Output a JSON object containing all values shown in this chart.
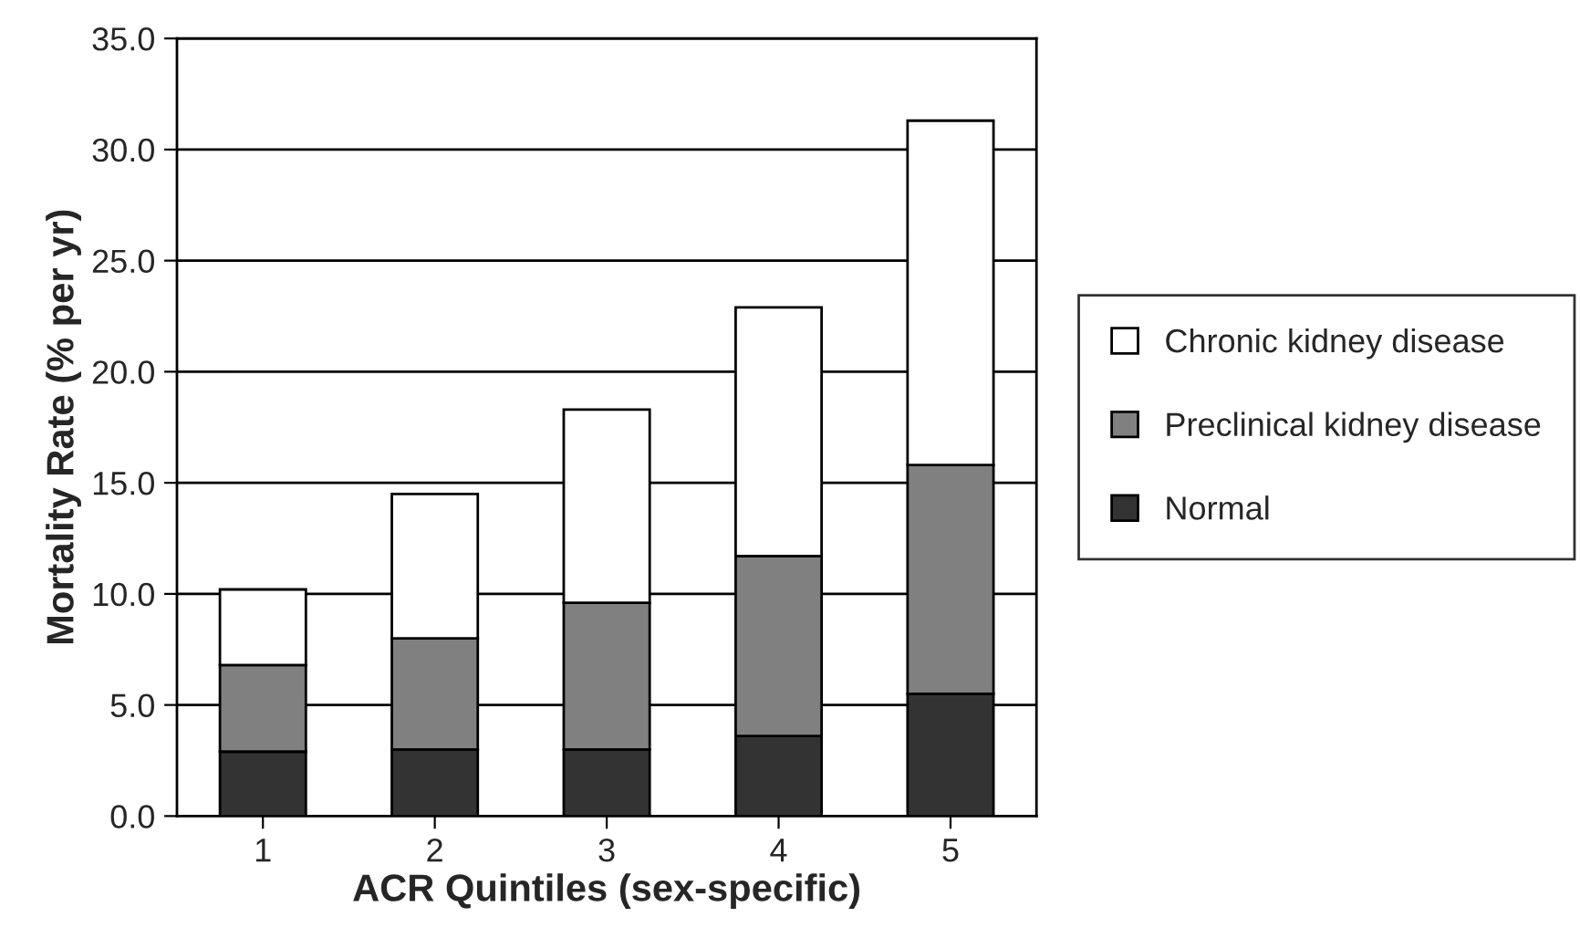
{
  "chart_data": {
    "type": "bar",
    "stacked": true,
    "xlabel": "ACR Quintiles (sex-specific)",
    "ylabel": "Mortality Rate (% per yr)",
    "categories": [
      "1",
      "2",
      "3",
      "4",
      "5"
    ],
    "series": [
      {
        "name": "Normal",
        "color": "#333333",
        "values": [
          2.9,
          3.0,
          3.0,
          3.6,
          5.5
        ]
      },
      {
        "name": "Preclinical kidney disease",
        "color": "#808080",
        "values": [
          3.9,
          5.0,
          6.6,
          8.1,
          10.3
        ]
      },
      {
        "name": "Chronic kidney disease",
        "color": "#ffffff",
        "values": [
          3.4,
          6.5,
          8.7,
          11.2,
          15.5
        ]
      }
    ],
    "ylim": [
      0,
      35
    ],
    "yticks": [
      {
        "value": 0,
        "label": "0.0"
      },
      {
        "value": 5,
        "label": "5.0"
      },
      {
        "value": 10,
        "label": "10.0"
      },
      {
        "value": 15,
        "label": "15.0"
      },
      {
        "value": 20,
        "label": "20.0"
      },
      {
        "value": 25,
        "label": "25.0"
      },
      {
        "value": 30,
        "label": "30.0"
      },
      {
        "value": 35,
        "label": "35.0"
      }
    ],
    "grid": "y",
    "legend": "right"
  }
}
